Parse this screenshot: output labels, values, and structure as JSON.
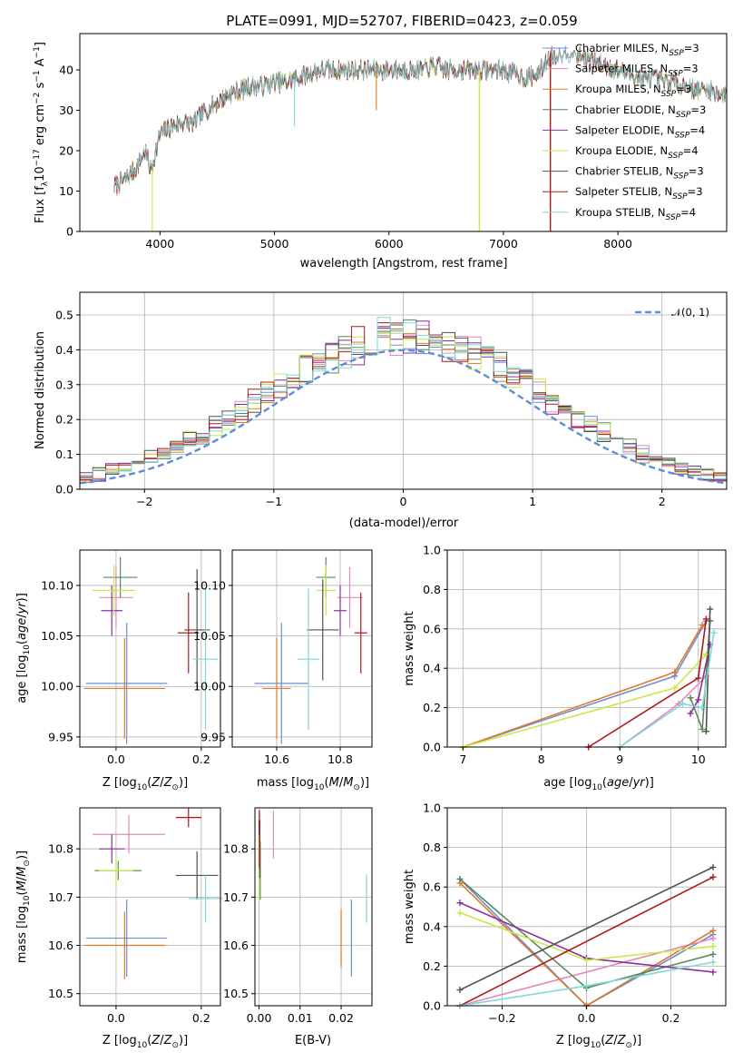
{
  "colors": {
    "chabrier_miles": "#6a8fd8",
    "salpeter_miles": "#e58ab8",
    "kroupa_miles": "#e07a28",
    "chabrier_elodie": "#5a8a5a",
    "salpeter_elodie": "#8e2fa0",
    "kroupa_elodie": "#c8e84a",
    "chabrier_stelib": "#505050",
    "salpeter_stelib": "#b01818",
    "kroupa_stelib": "#7ed8d8",
    "normal": "#5b8ddb"
  },
  "chart_data": [
    {
      "id": "spectrum",
      "type": "line",
      "title": "PLATE=0991, MJD=52707, FIBERID=0423, z=0.059",
      "xlabel": "wavelength [Angstrom, rest frame]",
      "ylabel_parts": [
        "Flux [f",
        "λ",
        "10",
        "−17",
        " erg cm",
        "−2",
        " s",
        "−1",
        " A",
        "−1",
        "]"
      ],
      "xlim": [
        3300,
        8950
      ],
      "ylim": [
        0,
        49
      ],
      "xticks": [
        4000,
        5000,
        6000,
        7000,
        8000
      ],
      "yticks": [
        0,
        10,
        20,
        30,
        40
      ],
      "grid": false,
      "legend_position": "right",
      "series": [
        {
          "name": "Chabrier MILES",
          "nssp": "3",
          "color_key": "chabrier_miles"
        },
        {
          "name": "Salpeter MILES",
          "nssp": "3",
          "color_key": "salpeter_miles"
        },
        {
          "name": "Kroupa MILES",
          "nssp": "3",
          "color_key": "kroupa_miles"
        },
        {
          "name": "Chabrier ELODIE",
          "nssp": "3",
          "color_key": "chabrier_elodie"
        },
        {
          "name": "Salpeter ELODIE",
          "nssp": "4",
          "color_key": "salpeter_elodie"
        },
        {
          "name": "Kroupa ELODIE",
          "nssp": "4",
          "color_key": "kroupa_elodie"
        },
        {
          "name": "Chabrier STELIB",
          "nssp": "3",
          "color_key": "chabrier_stelib"
        },
        {
          "name": "Salpeter STELIB",
          "nssp": "3",
          "color_key": "salpeter_stelib"
        },
        {
          "name": "Kroupa STELIB",
          "nssp": "4",
          "color_key": "kroupa_stelib"
        }
      ],
      "continuum": [
        [
          3600,
          11
        ],
        [
          3700,
          13
        ],
        [
          3800,
          16
        ],
        [
          3870,
          20
        ],
        [
          3920,
          15
        ],
        [
          4000,
          24
        ],
        [
          4100,
          26
        ],
        [
          4200,
          27
        ],
        [
          4300,
          27
        ],
        [
          4400,
          30
        ],
        [
          4500,
          32
        ],
        [
          4600,
          34
        ],
        [
          4700,
          35
        ],
        [
          4800,
          36
        ],
        [
          4900,
          36
        ],
        [
          5000,
          37
        ],
        [
          5100,
          37
        ],
        [
          5200,
          38
        ],
        [
          5300,
          39
        ],
        [
          5400,
          40
        ],
        [
          5500,
          40
        ],
        [
          5600,
          40
        ],
        [
          5700,
          40
        ],
        [
          5800,
          40
        ],
        [
          5900,
          40
        ],
        [
          6000,
          40
        ],
        [
          6100,
          40
        ],
        [
          6200,
          40
        ],
        [
          6300,
          40
        ],
        [
          6400,
          41
        ],
        [
          6500,
          40
        ],
        [
          6600,
          40
        ],
        [
          6700,
          40
        ],
        [
          6800,
          40
        ],
        [
          6900,
          40
        ],
        [
          7000,
          40
        ],
        [
          7100,
          39
        ],
        [
          7200,
          38
        ],
        [
          7300,
          39
        ],
        [
          7400,
          43
        ],
        [
          7500,
          44
        ],
        [
          7600,
          44
        ],
        [
          7700,
          43
        ],
        [
          7800,
          42
        ],
        [
          7900,
          41
        ],
        [
          8000,
          40
        ],
        [
          8100,
          39
        ],
        [
          8200,
          38
        ],
        [
          8300,
          38
        ],
        [
          8400,
          37
        ],
        [
          8500,
          37
        ],
        [
          8600,
          36
        ],
        [
          8700,
          35
        ],
        [
          8800,
          35
        ],
        [
          8900,
          34
        ]
      ],
      "absorption_features": [
        {
          "wavelength": 3933,
          "depth_to": 0
        },
        {
          "wavelength": 5175,
          "depth_to": 26
        },
        {
          "wavelength": 5890,
          "depth_to": 30
        },
        {
          "wavelength": 6790,
          "depth_to": 0
        },
        {
          "wavelength": 7410,
          "depth_to": 0
        }
      ]
    },
    {
      "id": "residuals",
      "type": "histogram",
      "xlabel": "(data-model)/error",
      "ylabel": "Normed distribution",
      "xlim": [
        -2.5,
        2.5
      ],
      "ylim": [
        0,
        0.565
      ],
      "xticks": [
        -2,
        -1,
        0,
        1,
        2
      ],
      "yticks": [
        0.0,
        0.1,
        0.2,
        0.3,
        0.4,
        0.5
      ],
      "grid": true,
      "legend_position": "top-right",
      "legend_label": "𝒩(0, 1)",
      "bin_width": 0.1
    },
    {
      "id": "age_vs_Z",
      "type": "errorbar",
      "xlabel": "Z [log",
      "xlabel_sub": "10",
      "xlabel_tail": "(Z/Z",
      "xlabel_end": ")]",
      "ylabel": "age  [log10(age/yr)]",
      "xlim": [
        -0.085,
        0.245
      ],
      "ylim": [
        9.94,
        10.135
      ],
      "xticks": [
        0.0,
        0.2
      ],
      "yticks": [
        9.95,
        10.0,
        10.05,
        10.1
      ],
      "grid": true,
      "points": [
        {
          "series": "chabrier_miles",
          "x": 0.025,
          "y": 10.003,
          "xerr": 0.095,
          "yerr": 0.06
        },
        {
          "series": "salpeter_miles",
          "x": 0.0,
          "y": 10.088,
          "xerr": 0.04,
          "yerr": 0.03
        },
        {
          "series": "kroupa_miles",
          "x": 0.02,
          "y": 9.998,
          "xerr": 0.095,
          "yerr": 0.05
        },
        {
          "series": "chabrier_elodie",
          "x": 0.01,
          "y": 10.108,
          "xerr": 0.04,
          "yerr": 0.02
        },
        {
          "series": "salpeter_elodie",
          "x": -0.01,
          "y": 10.075,
          "xerr": 0.025,
          "yerr": 0.025
        },
        {
          "series": "kroupa_elodie",
          "x": -0.005,
          "y": 10.095,
          "xerr": 0.05,
          "yerr": 0.025
        },
        {
          "series": "chabrier_stelib",
          "x": 0.19,
          "y": 10.056,
          "xerr": 0.03,
          "yerr": 0.06
        },
        {
          "series": "salpeter_stelib",
          "x": 0.17,
          "y": 10.053,
          "xerr": 0.025,
          "yerr": 0.04
        },
        {
          "series": "kroupa_stelib",
          "x": 0.21,
          "y": 10.027,
          "xerr": 0.03,
          "yerr": 0.07
        }
      ]
    },
    {
      "id": "age_vs_mass",
      "type": "errorbar",
      "xlabel": "mass [log10(M/M⊙)]",
      "xlim": [
        10.46,
        10.9
      ],
      "ylim": [
        9.94,
        10.135
      ],
      "xticks": [
        10.6,
        10.8
      ],
      "yticks": [
        9.95,
        10.0,
        10.05,
        10.1
      ],
      "grid": true,
      "points": [
        {
          "series": "chabrier_miles",
          "x": 10.615,
          "y": 10.003,
          "xerr": 0.085,
          "yerr": 0.06
        },
        {
          "series": "salpeter_miles",
          "x": 10.83,
          "y": 10.088,
          "xerr": 0.04,
          "yerr": 0.03
        },
        {
          "series": "kroupa_miles",
          "x": 10.6,
          "y": 9.998,
          "xerr": 0.045,
          "yerr": 0.05
        },
        {
          "series": "chabrier_elodie",
          "x": 10.755,
          "y": 10.108,
          "xerr": 0.03,
          "yerr": 0.02
        },
        {
          "series": "salpeter_elodie",
          "x": 10.8,
          "y": 10.075,
          "xerr": 0.02,
          "yerr": 0.025
        },
        {
          "series": "kroupa_elodie",
          "x": 10.755,
          "y": 10.095,
          "xerr": 0.03,
          "yerr": 0.025
        },
        {
          "series": "chabrier_stelib",
          "x": 10.745,
          "y": 10.056,
          "xerr": 0.05,
          "yerr": 0.05
        },
        {
          "series": "salpeter_stelib",
          "x": 10.865,
          "y": 10.053,
          "xerr": 0.02,
          "yerr": 0.04
        },
        {
          "series": "kroupa_stelib",
          "x": 10.7,
          "y": 10.027,
          "xerr": 0.035,
          "yerr": 0.07
        }
      ]
    },
    {
      "id": "weight_vs_age",
      "type": "line",
      "xlabel": "age  [log10(age/yr)]",
      "ylabel": "mass weight",
      "xlim": [
        6.8,
        10.35
      ],
      "ylim": [
        0,
        1.0
      ],
      "xticks": [
        7,
        8,
        9,
        10
      ],
      "yticks": [
        0.0,
        0.2,
        0.4,
        0.6,
        0.8,
        1.0
      ],
      "grid": true,
      "series": [
        {
          "series": "chabrier_miles",
          "points": [
            [
              7.0,
              0.0
            ],
            [
              9.7,
              0.36
            ],
            [
              10.1,
              0.64
            ]
          ]
        },
        {
          "series": "salpeter_miles",
          "points": [
            [
              9.0,
              0.0
            ],
            [
              9.75,
              0.22
            ],
            [
              10.1,
              0.36
            ],
            [
              10.15,
              0.64
            ]
          ]
        },
        {
          "series": "kroupa_miles",
          "points": [
            [
              7.0,
              0.0
            ],
            [
              9.7,
              0.38
            ],
            [
              10.05,
              0.62
            ]
          ]
        },
        {
          "series": "chabrier_elodie",
          "points": [
            [
              9.9,
              0.25
            ],
            [
              10.05,
              0.09
            ],
            [
              10.15,
              0.64
            ]
          ]
        },
        {
          "series": "salpeter_elodie",
          "points": [
            [
              9.9,
              0.17
            ],
            [
              10.0,
              0.24
            ],
            [
              10.15,
              0.52
            ]
          ]
        },
        {
          "series": "kroupa_elodie",
          "points": [
            [
              7.0,
              0.0
            ],
            [
              9.7,
              0.3
            ],
            [
              10.1,
              0.47
            ]
          ]
        },
        {
          "series": "chabrier_stelib",
          "points": [
            [
              10.1,
              0.08
            ],
            [
              10.15,
              0.7
            ]
          ]
        },
        {
          "series": "salpeter_stelib",
          "points": [
            [
              8.6,
              0.0
            ],
            [
              10.0,
              0.35
            ],
            [
              10.1,
              0.65
            ]
          ]
        },
        {
          "series": "kroupa_stelib",
          "points": [
            [
              9.0,
              0.0
            ],
            [
              9.8,
              0.22
            ],
            [
              10.05,
              0.2
            ],
            [
              10.2,
              0.58
            ]
          ]
        }
      ]
    },
    {
      "id": "mass_vs_Z",
      "type": "errorbar",
      "xlabel": "Z [log10(Z/Z⊙)]",
      "ylabel": "mass [log10(M/M⊙)]",
      "xlim": [
        -0.085,
        0.245
      ],
      "ylim": [
        10.475,
        10.885
      ],
      "xticks": [
        0.0,
        0.2
      ],
      "yticks": [
        10.5,
        10.6,
        10.7,
        10.8
      ],
      "grid": true,
      "points": [
        {
          "series": "chabrier_miles",
          "x": 0.025,
          "y": 10.615,
          "xerr": 0.095,
          "yerr": 0.08
        },
        {
          "series": "salpeter_miles",
          "x": 0.03,
          "y": 10.83,
          "xerr": 0.085,
          "yerr": 0.04
        },
        {
          "series": "kroupa_miles",
          "x": 0.02,
          "y": 10.6,
          "xerr": 0.095,
          "yerr": 0.07
        },
        {
          "series": "chabrier_elodie",
          "x": 0.005,
          "y": 10.755,
          "xerr": 0.055,
          "yerr": 0.02
        },
        {
          "series": "salpeter_elodie",
          "x": -0.01,
          "y": 10.8,
          "xerr": 0.03,
          "yerr": 0.03
        },
        {
          "series": "kroupa_elodie",
          "x": 0.0,
          "y": 10.755,
          "xerr": 0.04,
          "yerr": 0.03
        },
        {
          "series": "chabrier_stelib",
          "x": 0.19,
          "y": 10.745,
          "xerr": 0.05,
          "yerr": 0.05
        },
        {
          "series": "salpeter_stelib",
          "x": 0.17,
          "y": 10.865,
          "xerr": 0.03,
          "yerr": 0.02
        },
        {
          "series": "kroupa_stelib",
          "x": 0.21,
          "y": 10.697,
          "xerr": 0.04,
          "yerr": 0.05
        }
      ]
    },
    {
      "id": "mass_vs_EBV",
      "type": "errorbar",
      "xlabel": "E(B-V)",
      "xlim": [
        -0.001,
        0.0275
      ],
      "ylim": [
        10.475,
        10.885
      ],
      "xticks": [
        0.0,
        0.01,
        0.02
      ],
      "xtick_labels": [
        "0.00",
        "0.01",
        "0.02"
      ],
      "yticks": [
        10.5,
        10.6,
        10.7,
        10.8
      ],
      "grid": true,
      "points": [
        {
          "series": "chabrier_miles",
          "x": 0.0225,
          "y": 10.615,
          "xerr": 0,
          "yerr": 0.08
        },
        {
          "series": "salpeter_miles",
          "x": 0.0035,
          "y": 10.83,
          "xerr": 0,
          "yerr": 0.05
        },
        {
          "series": "kroupa_miles",
          "x": 0.02,
          "y": 10.615,
          "xerr": 0,
          "yerr": 0.06
        },
        {
          "series": "chabrier_elodie",
          "x": 0.0003,
          "y": 10.755,
          "xerr": 0,
          "yerr": 0.06
        },
        {
          "series": "salpeter_elodie",
          "x": 0.0,
          "y": 10.8,
          "xerr": 0,
          "yerr": 0.06
        },
        {
          "series": "kroupa_elodie",
          "x": 0.0,
          "y": 10.76,
          "xerr": 0,
          "yerr": 0.07
        },
        {
          "series": "chabrier_stelib",
          "x": 0.0002,
          "y": 10.8,
          "xerr": 0,
          "yerr": 0.06
        },
        {
          "series": "salpeter_stelib",
          "x": 0.0001,
          "y": 10.82,
          "xerr": 0,
          "yerr": 0.06
        },
        {
          "series": "kroupa_stelib",
          "x": 0.0262,
          "y": 10.697,
          "xerr": 0,
          "yerr": 0.05
        }
      ]
    },
    {
      "id": "weight_vs_Z",
      "type": "line",
      "xlabel": "Z [log10(Z/Z⊙)]",
      "ylabel": "mass weight",
      "xlim": [
        -0.33,
        0.33
      ],
      "ylim": [
        0,
        1.0
      ],
      "xticks": [
        -0.2,
        0.0,
        0.2
      ],
      "xtick_labels": [
        "−0.2",
        "0.0",
        "0.2"
      ],
      "yticks": [
        0.0,
        0.2,
        0.4,
        0.6,
        0.8,
        1.0
      ],
      "grid": true,
      "series": [
        {
          "series": "chabrier_miles",
          "points": [
            [
              -0.3,
              0.64
            ],
            [
              0.0,
              0.0
            ],
            [
              0.3,
              0.36
            ]
          ]
        },
        {
          "series": "salpeter_miles",
          "points": [
            [
              -0.3,
              0.0
            ],
            [
              0.3,
              0.34
            ]
          ]
        },
        {
          "series": "kroupa_miles",
          "points": [
            [
              -0.3,
              0.62
            ],
            [
              0.0,
              0.0
            ],
            [
              0.3,
              0.38
            ]
          ]
        },
        {
          "series": "chabrier_elodie",
          "points": [
            [
              -0.3,
              0.64
            ],
            [
              0.0,
              0.09
            ],
            [
              0.3,
              0.26
            ]
          ]
        },
        {
          "series": "salpeter_elodie",
          "points": [
            [
              -0.3,
              0.52
            ],
            [
              0.0,
              0.24
            ],
            [
              0.3,
              0.17
            ]
          ]
        },
        {
          "series": "kroupa_elodie",
          "points": [
            [
              -0.3,
              0.47
            ],
            [
              0.0,
              0.23
            ],
            [
              0.3,
              0.3
            ]
          ]
        },
        {
          "series": "chabrier_stelib",
          "points": [
            [
              -0.3,
              0.08
            ],
            [
              0.3,
              0.7
            ]
          ]
        },
        {
          "series": "salpeter_stelib",
          "points": [
            [
              -0.3,
              0.0
            ],
            [
              0.3,
              0.65
            ]
          ]
        },
        {
          "series": "kroupa_stelib",
          "points": [
            [
              -0.3,
              0.0
            ],
            [
              0.0,
              0.1
            ],
            [
              0.3,
              0.22
            ]
          ]
        }
      ]
    }
  ]
}
